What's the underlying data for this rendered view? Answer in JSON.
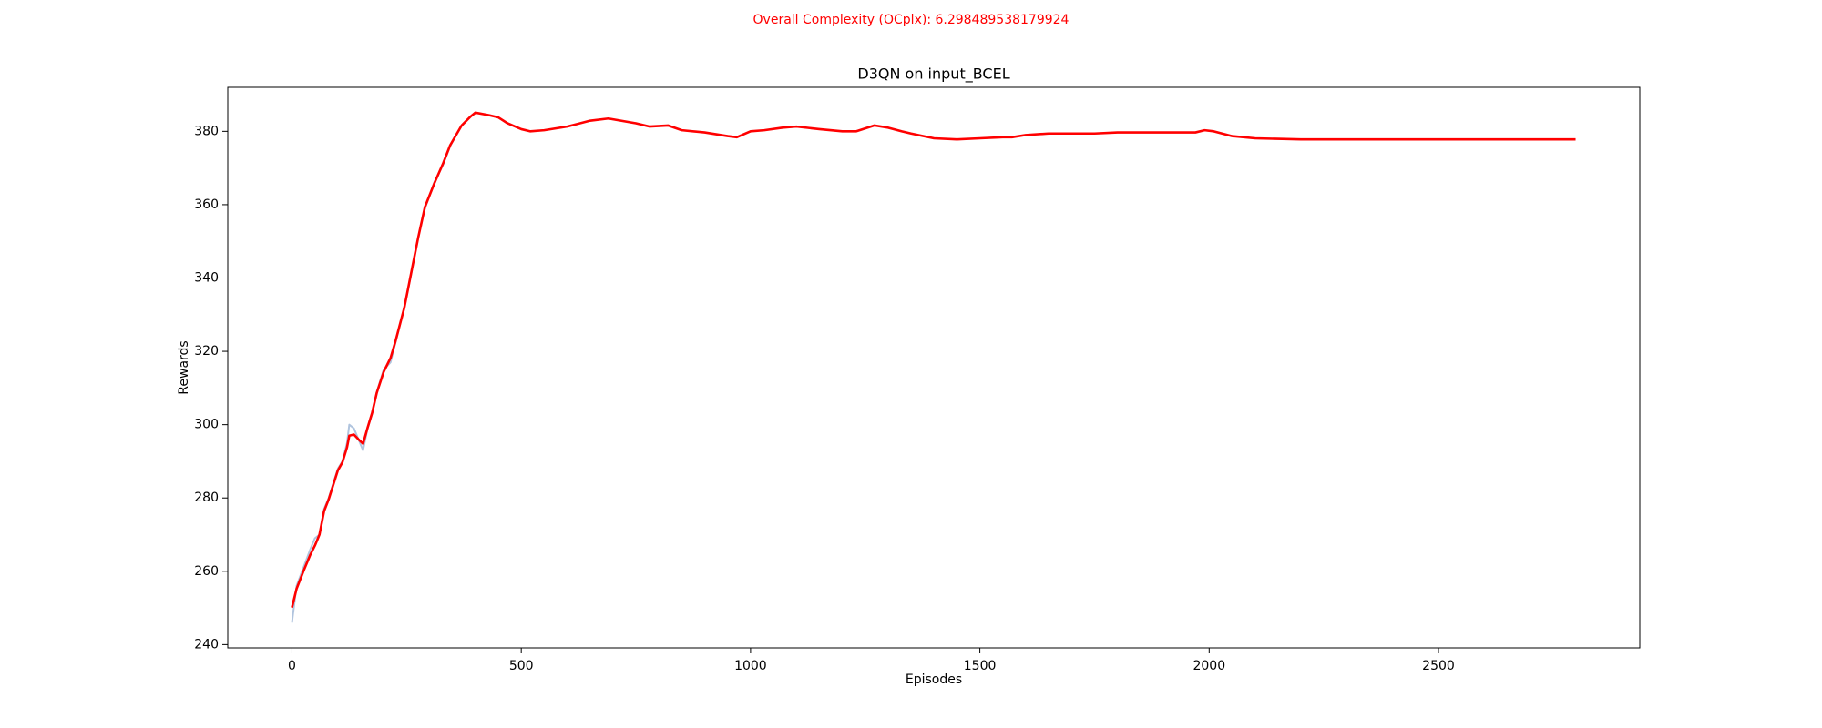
{
  "chart_data": {
    "type": "line",
    "suptitle": "Overall Complexity (OCplx): 6.298489538179924",
    "suptitle_color": "#ff0000",
    "title": "D3QN on input_BCEL",
    "x_label": "Episodes",
    "y_label": "Rewards",
    "x": [
      0,
      10,
      25,
      40,
      50,
      60,
      70,
      80,
      100,
      110,
      120,
      125,
      135,
      145,
      155,
      165,
      175,
      185,
      200,
      215,
      225,
      245,
      260,
      275,
      290,
      310,
      330,
      345,
      370,
      390,
      400,
      430,
      450,
      470,
      500,
      520,
      550,
      600,
      650,
      690,
      750,
      780,
      820,
      850,
      900,
      950,
      970,
      1000,
      1030,
      1070,
      1100,
      1150,
      1200,
      1230,
      1270,
      1300,
      1330,
      1350,
      1400,
      1450,
      1500,
      1550,
      1570,
      1600,
      1650,
      1700,
      1750,
      1800,
      1900,
      1970,
      1990,
      2010,
      2050,
      2100,
      2200,
      2400,
      2600,
      2799
    ],
    "series": [
      {
        "color": "#b0c4de",
        "values": [
          246,
          256,
          261,
          266,
          269,
          270,
          277,
          280,
          288,
          290,
          295,
          300,
          299,
          296,
          293,
          299,
          303,
          309,
          315,
          317,
          322,
          332,
          341,
          351,
          359,
          366,
          371,
          376,
          381.6,
          384.1,
          385.1,
          384.4,
          383.8,
          382.2,
          380.6,
          380,
          380.3,
          381.3,
          382.9,
          383.5,
          382.2,
          381.3,
          381.6,
          380.3,
          379.7,
          378.7,
          378.4,
          380,
          380.3,
          381,
          381.3,
          380.6,
          380,
          380,
          381.6,
          381,
          380,
          379.4,
          378.1,
          377.8,
          378.1,
          378.4,
          378.4,
          379,
          379.4,
          379.4,
          379.4,
          379.7,
          379.7,
          379.7,
          380.3,
          380,
          378.7,
          378.1,
          377.8,
          377.8,
          377.8,
          377.8
        ]
      },
      {
        "color": "#ff0000",
        "values": [
          250.1,
          255.2,
          260,
          264.5,
          267,
          270,
          276.4,
          279.6,
          287.5,
          289.7,
          293.8,
          297,
          297.3,
          296,
          294.8,
          299.2,
          303.3,
          308.7,
          314.4,
          318.2,
          322.4,
          331.9,
          341.4,
          350.9,
          359.4,
          365.7,
          371.4,
          376.2,
          381.6,
          384.1,
          385.1,
          384.4,
          383.8,
          382.2,
          380.6,
          380,
          380.3,
          381.3,
          382.9,
          383.5,
          382.2,
          381.3,
          381.6,
          380.3,
          379.7,
          378.7,
          378.4,
          380,
          380.3,
          381,
          381.3,
          380.6,
          380,
          380,
          381.6,
          381,
          380,
          379.4,
          378.1,
          377.8,
          378.1,
          378.4,
          378.4,
          379,
          379.4,
          379.4,
          379.4,
          379.7,
          379.7,
          379.7,
          380.3,
          380,
          378.7,
          378.1,
          377.8,
          377.8,
          377.8,
          377.8
        ]
      }
    ],
    "xlim": [
      -140,
      2939
    ],
    "ylim": [
      239.1,
      392
    ],
    "xticks": [
      0,
      500,
      1000,
      1500,
      2000,
      2500
    ],
    "yticks": [
      240,
      260,
      280,
      300,
      320,
      340,
      360,
      380
    ]
  }
}
